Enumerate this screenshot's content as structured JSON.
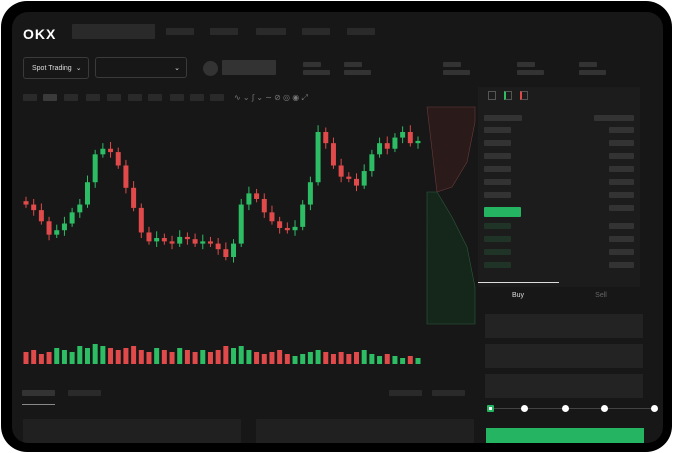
{
  "header": {
    "logo": "OKX"
  },
  "market": {
    "mode_label": "Spot Trading",
    "mode_icon": "chevron-down-icon",
    "pair_icon": "chevron-down-icon"
  },
  "order_form": {
    "tabs": [
      "Buy",
      "Sell"
    ],
    "active_tab": "Buy",
    "slider_percent": 0
  },
  "colors": {
    "up": "#2dbd64",
    "down": "#e04a4a",
    "accent": "#25b562",
    "background": "#171717"
  },
  "chart_data": {
    "type": "candlestick",
    "closes": [
      95,
      90,
      80,
      68,
      72,
      78,
      88,
      95,
      115,
      140,
      145,
      142,
      130,
      110,
      92,
      70,
      62,
      65,
      62,
      60,
      66,
      64,
      60,
      62,
      60,
      55,
      48,
      60,
      95,
      105,
      100,
      88,
      80,
      74,
      72,
      75,
      95,
      115,
      160,
      150,
      130,
      120,
      118,
      112,
      125,
      140,
      150,
      145,
      155,
      160,
      150,
      152
    ],
    "volumes": [
      6,
      7,
      5,
      6,
      8,
      7,
      6,
      9,
      8,
      10,
      9,
      8,
      7,
      8,
      9,
      7,
      6,
      8,
      7,
      6,
      8,
      7,
      6,
      7,
      6,
      7,
      9,
      8,
      9,
      7,
      6,
      5,
      6,
      7,
      5,
      4,
      5,
      6,
      7,
      6,
      5,
      6,
      5,
      6,
      7,
      5,
      4,
      5,
      4,
      3,
      4,
      3
    ]
  }
}
